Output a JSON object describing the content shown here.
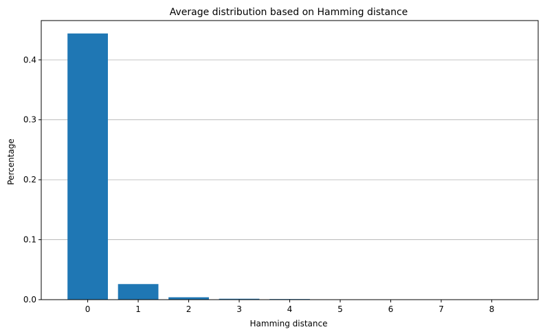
{
  "chart_data": {
    "type": "bar",
    "title": "Average distribution based on Hamming distance",
    "xlabel": "Hamming distance",
    "ylabel": "Percentage",
    "categories": [
      "0",
      "1",
      "2",
      "3",
      "4",
      "5",
      "6",
      "7",
      "8"
    ],
    "values": [
      0.444,
      0.026,
      0.004,
      0.0015,
      0.001,
      0.0003,
      0.0001,
      5e-05,
      2e-05
    ],
    "ylim": [
      0,
      0.4655
    ],
    "yticks": [
      "0.0",
      "0.1",
      "0.2",
      "0.3",
      "0.4"
    ],
    "ytick_values": [
      0.0,
      0.1,
      0.2,
      0.3,
      0.4
    ],
    "grid": "y-major",
    "colors": {
      "bar": "#1f77b4",
      "grid": "#b0b0b0",
      "axis": "#000000"
    }
  }
}
